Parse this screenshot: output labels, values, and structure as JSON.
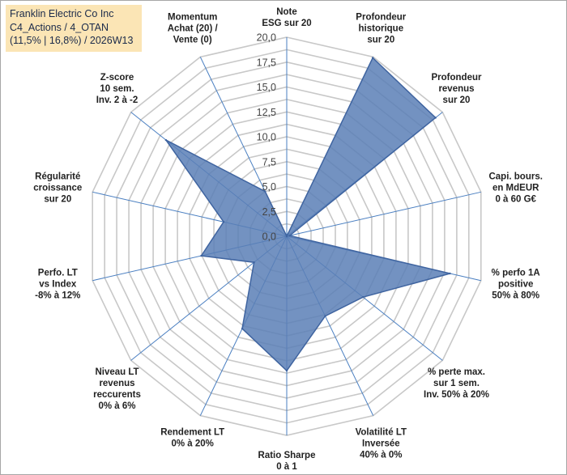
{
  "title": {
    "line1": "Franklin Electric Co Inc",
    "line2": "C4_Actions / 4_OTAN",
    "line3": "(11,5% | 16,8%) / 2026W13"
  },
  "chart_data": {
    "type": "radar",
    "rmin": 0,
    "rmax": 20,
    "tick_step": 2.5,
    "tick_labels": [
      "0,0",
      "2,5",
      "5,0",
      "7,5",
      "10,0",
      "12,5",
      "15,0",
      "17,5",
      "20,0"
    ],
    "axes": [
      [
        "Note",
        "ESG sur 20"
      ],
      [
        "Profondeur",
        "historique",
        "sur 20"
      ],
      [
        "Profondeur",
        "revenus",
        "sur 20"
      ],
      [
        "Capi. bours.",
        "en MdEUR",
        "0 à 60 G€"
      ],
      [
        "% perfo 1A",
        "positive",
        "50% à 80%"
      ],
      [
        "% perte max.",
        "sur 1 sem.",
        "Inv. 50% à 20%"
      ],
      [
        "Volatilité LT",
        "Inversée",
        "40% à 0%"
      ],
      [
        "Ratio Sharpe",
        "0 à 1"
      ],
      [
        "Rendement LT",
        "0% à 20%"
      ],
      [
        "Niveau LT",
        "revenus",
        "reccurents",
        "0% à 6%"
      ],
      [
        "Perfo. LT",
        "vs Index",
        "-8% à 12%"
      ],
      [
        "Régularité",
        "croissance",
        "sur 20"
      ],
      [
        "Z-score",
        "10 sem.",
        "Inv. 2 à -2"
      ],
      [
        "Momentum",
        "Achat (20) /",
        "Vente (0)"
      ]
    ],
    "series": [
      {
        "values": [
          0,
          19.9,
          19.1,
          0.3,
          16.8,
          9.8,
          8.9,
          13.5,
          10.3,
          4.2,
          8.8,
          6.5,
          15.5,
          5.0
        ]
      }
    ],
    "colors": {
      "fill": "#5b7fb6",
      "stroke": "#3f64a0",
      "grid": "#c8c8c8",
      "axis": "#4a7fc1"
    }
  }
}
